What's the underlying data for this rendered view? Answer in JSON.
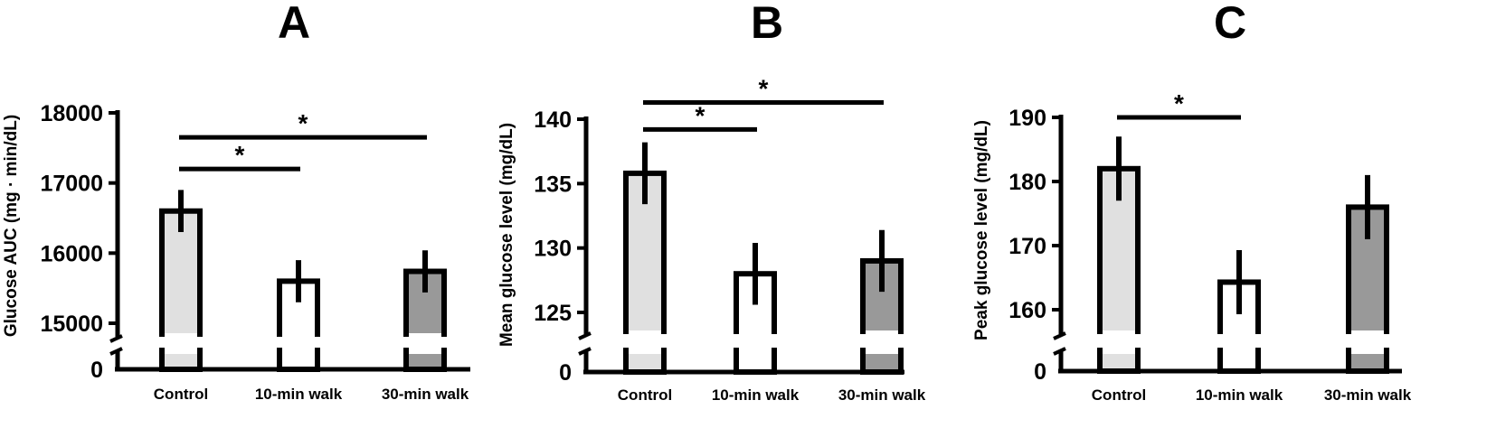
{
  "chart_data": [
    {
      "type": "bar",
      "title": "A",
      "ylabel": "Glucose AUC (mg · min/dL)",
      "categories": [
        "Control",
        "10-min walk",
        "30-min walk"
      ],
      "values": [
        16600,
        15600,
        15740
      ],
      "errors": [
        300,
        300,
        300
      ],
      "colors": [
        "#e0e0e0",
        "#ffffff",
        "#999999"
      ],
      "ylim": [
        15000,
        18000
      ],
      "yticks": [
        "15000",
        "16000",
        "17000",
        "18000"
      ],
      "ytick_values": [
        15000,
        16000,
        17000,
        18000
      ],
      "zero_label": "0",
      "axis_break": true,
      "significance": [
        {
          "from": 0,
          "to": 1,
          "level": 17200,
          "label": "*"
        },
        {
          "from": 0,
          "to": 2,
          "level": 17650,
          "label": "*"
        }
      ]
    },
    {
      "type": "bar",
      "title": "B",
      "ylabel": "Mean glucose level (mg/dL)",
      "categories": [
        "Control",
        "10-min walk",
        "30-min walk"
      ],
      "values": [
        135.8,
        128,
        129
      ],
      "errors": [
        2.4,
        2.4,
        2.4
      ],
      "colors": [
        "#e0e0e0",
        "#ffffff",
        "#999999"
      ],
      "ylim": [
        125,
        140
      ],
      "yticks": [
        "125",
        "130",
        "135",
        "140"
      ],
      "ytick_values": [
        125,
        130,
        135,
        140
      ],
      "zero_label": "0",
      "axis_break": true,
      "significance": [
        {
          "from": 0,
          "to": 1,
          "level": 139.2,
          "label": "*"
        },
        {
          "from": 0,
          "to": 2,
          "level": 141.3,
          "label": "*"
        }
      ]
    },
    {
      "type": "bar",
      "title": "C",
      "ylabel": "Peak glucose level (mg/dL)",
      "categories": [
        "Control",
        "10-min walk",
        "30-min walk"
      ],
      "values": [
        182,
        164.3,
        176
      ],
      "errors": [
        5,
        5,
        5
      ],
      "colors": [
        "#e0e0e0",
        "#ffffff",
        "#999999"
      ],
      "ylim": [
        160,
        190
      ],
      "yticks": [
        "160",
        "170",
        "180",
        "190"
      ],
      "ytick_values": [
        160,
        170,
        180,
        190
      ],
      "zero_label": "0",
      "axis_break": true,
      "significance": [
        {
          "from": 0,
          "to": 1,
          "level": 190,
          "label": "*"
        }
      ]
    }
  ]
}
